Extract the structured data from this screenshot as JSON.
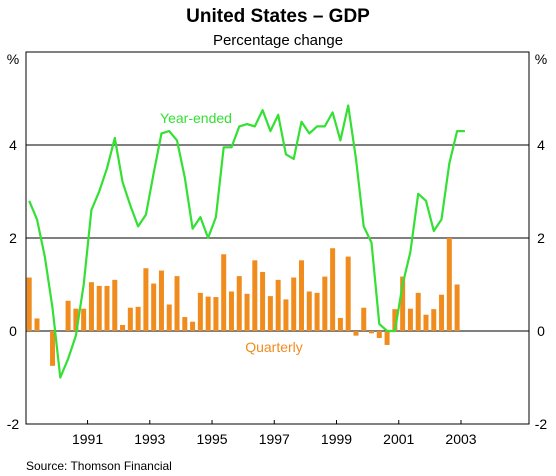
{
  "chart_data": {
    "type": "bar+line",
    "title": "United States – GDP",
    "subtitle": "Percentage change",
    "y_unit_left": "%",
    "y_unit_right": "%",
    "ylim": [
      -2,
      6
    ],
    "y_ticks": [
      "-2",
      "0",
      "2",
      "4"
    ],
    "x_ticks": [
      "1991",
      "1993",
      "1995",
      "1997",
      "1999",
      "2001",
      "2003"
    ],
    "grid": "horizontal",
    "source": "Source: Thomson Financial",
    "series": [
      {
        "name": "Quarterly",
        "type": "bar",
        "color": "#f08c1e",
        "x": [
          "1989-Q3",
          "1989-Q4",
          "1990-Q1",
          "1990-Q2",
          "1990-Q3",
          "1990-Q4",
          "1991-Q1",
          "1991-Q2",
          "1991-Q3",
          "1991-Q4",
          "1992-Q1",
          "1992-Q2",
          "1992-Q3",
          "1992-Q4",
          "1993-Q1",
          "1993-Q2",
          "1993-Q3",
          "1993-Q4",
          "1994-Q1",
          "1994-Q2",
          "1994-Q3",
          "1994-Q4",
          "1995-Q1",
          "1995-Q2",
          "1995-Q3",
          "1995-Q4",
          "1996-Q1",
          "1996-Q2",
          "1996-Q3",
          "1996-Q4",
          "1997-Q1",
          "1997-Q2",
          "1997-Q3",
          "1997-Q4",
          "1998-Q1",
          "1998-Q2",
          "1998-Q3",
          "1998-Q4",
          "1999-Q1",
          "1999-Q2",
          "1999-Q3",
          "1999-Q4",
          "2000-Q1",
          "2000-Q2",
          "2000-Q3",
          "2000-Q4",
          "2001-Q1",
          "2001-Q2",
          "2001-Q3",
          "2001-Q4",
          "2002-Q1",
          "2002-Q2",
          "2002-Q3",
          "2002-Q4",
          "2003-Q1",
          "2003-Q2",
          "2003-Q3"
        ],
        "values": [
          1.15,
          0.27,
          0,
          -0.75,
          0,
          0.65,
          0.48,
          0.48,
          1.05,
          0.97,
          0.97,
          1.1,
          0.13,
          0.5,
          0.52,
          1.35,
          1.02,
          1.3,
          0.57,
          1.18,
          0.3,
          0.2,
          0.82,
          0.74,
          0.73,
          1.65,
          0.85,
          1.18,
          0.8,
          1.52,
          1.27,
          0.75,
          1.1,
          0.68,
          1.15,
          1.52,
          0.85,
          0.82,
          1.17,
          1.78,
          0.28,
          1.6,
          -0.1,
          0.5,
          -0.05,
          -0.15,
          -0.3,
          0.47,
          1.17,
          0.48,
          0.82,
          0.35,
          0.47,
          0.78,
          2.0,
          1.0,
          0
        ]
      },
      {
        "name": "Year-ended",
        "type": "line",
        "color": "#33e033",
        "x": [
          "1989-Q3",
          "1989-Q4",
          "1990-Q1",
          "1990-Q2",
          "1990-Q3",
          "1990-Q4",
          "1991-Q1",
          "1991-Q2",
          "1991-Q3",
          "1991-Q4",
          "1992-Q1",
          "1992-Q2",
          "1992-Q3",
          "1992-Q4",
          "1993-Q1",
          "1993-Q2",
          "1993-Q3",
          "1993-Q4",
          "1994-Q1",
          "1994-Q2",
          "1994-Q3",
          "1994-Q4",
          "1995-Q1",
          "1995-Q2",
          "1995-Q3",
          "1995-Q4",
          "1996-Q1",
          "1996-Q2",
          "1996-Q3",
          "1996-Q4",
          "1997-Q1",
          "1997-Q2",
          "1997-Q3",
          "1997-Q4",
          "1998-Q1",
          "1998-Q2",
          "1998-Q3",
          "1998-Q4",
          "1999-Q1",
          "1999-Q2",
          "1999-Q3",
          "1999-Q4",
          "2000-Q1",
          "2000-Q2",
          "2000-Q3",
          "2000-Q4",
          "2001-Q1",
          "2001-Q2",
          "2001-Q3",
          "2001-Q4",
          "2002-Q1",
          "2002-Q2",
          "2002-Q3",
          "2002-Q4",
          "2003-Q1",
          "2003-Q2",
          "2003-Q3"
        ],
        "values": [
          2.8,
          2.4,
          1.6,
          0.5,
          -1.0,
          -0.6,
          -0.1,
          1.0,
          2.6,
          3.0,
          3.5,
          4.15,
          3.2,
          2.7,
          2.25,
          2.5,
          3.4,
          4.25,
          4.3,
          4.1,
          3.3,
          2.2,
          2.45,
          2.0,
          2.45,
          3.95,
          3.95,
          4.4,
          4.45,
          4.4,
          4.75,
          4.3,
          4.65,
          3.8,
          3.7,
          4.5,
          4.25,
          4.4,
          4.4,
          4.7,
          4.1,
          4.85,
          3.7,
          2.25,
          1.9,
          0.15,
          0.0,
          0.0,
          1.0,
          1.7,
          2.95,
          2.8,
          2.15,
          2.4,
          3.6,
          4.3,
          4.3
        ]
      }
    ]
  }
}
